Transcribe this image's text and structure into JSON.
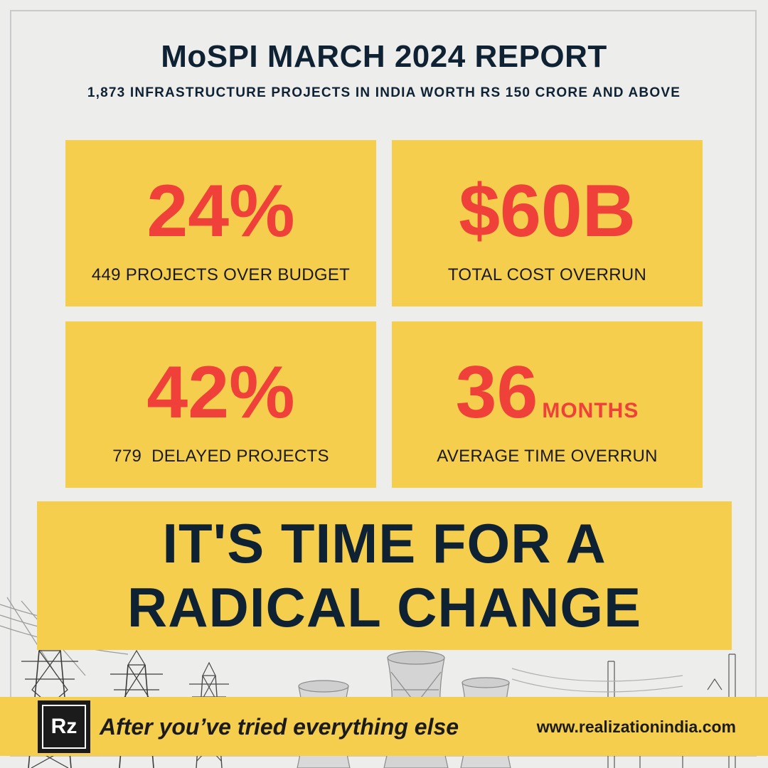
{
  "header": {
    "title": "MoSPI MARCH 2024 REPORT",
    "subtitle": "1,873 INFRASTRUCTURE PROJECTS IN INDIA WORTH RS 150 CRORE AND ABOVE"
  },
  "stats": [
    {
      "value": "24%",
      "unit": "",
      "label": "449 PROJECTS OVER BUDGET"
    },
    {
      "value": "$60B",
      "unit": "",
      "label": "TOTAL COST OVERRUN"
    },
    {
      "value": "42%",
      "unit": "",
      "label": "779  DELAYED PROJECTS"
    },
    {
      "value": "36",
      "unit": "MONTHS",
      "label": "AVERAGE TIME OVERRUN"
    }
  ],
  "headline": {
    "line1": "IT'S TIME FOR A",
    "line2": "RADICAL CHANGE"
  },
  "footer": {
    "logo_text": "Rz",
    "tagline": "After you’ve tried everything else",
    "website": "www.realizationindia.com"
  },
  "colors": {
    "accent_yellow": "#f6ce4e",
    "stat_red": "#f0403a",
    "navy": "#0f2233",
    "background": "#ededec"
  },
  "icons": {
    "background_art": "power-infrastructure-illustration"
  }
}
